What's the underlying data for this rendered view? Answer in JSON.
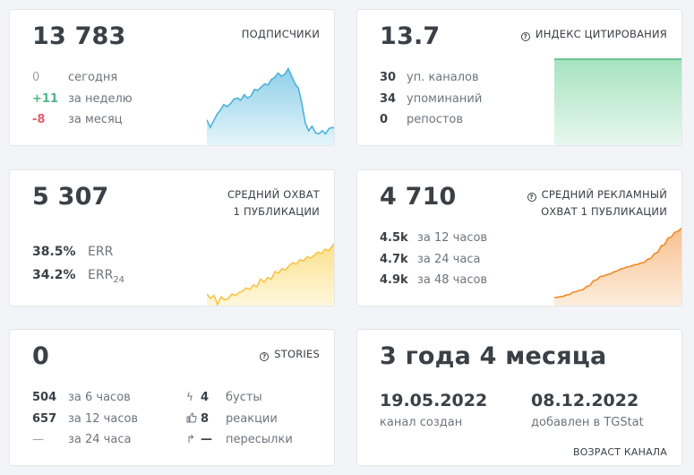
{
  "subscribers": {
    "value": "13 783",
    "label": "ПОДПИСЧИКИ",
    "rows": [
      {
        "value": "0",
        "text": "сегодня",
        "tone": "muted"
      },
      {
        "value": "+11",
        "text": "за неделю",
        "tone": "green"
      },
      {
        "value": "-8",
        "text": "за месяц",
        "tone": "red"
      }
    ],
    "sparkline": {
      "type": "area",
      "color": "#4ab3d8",
      "fill_top": "#8fd0e8",
      "fill_bottom": "#e6f5fb",
      "values": [
        25,
        18,
        24,
        30,
        34,
        39,
        37,
        40,
        44,
        45,
        43,
        48,
        45,
        47,
        53,
        52,
        55,
        58,
        57,
        62,
        64,
        68,
        65,
        67,
        72,
        65,
        58,
        54,
        40,
        22,
        15,
        19,
        13,
        12,
        15,
        12,
        17,
        18,
        17
      ]
    }
  },
  "citation": {
    "value": "13.7",
    "label": "ИНДЕКС ЦИТИРОВАНИЯ",
    "icon": "question-circle-icon",
    "rows": [
      {
        "value": "30",
        "text": "уп. каналов"
      },
      {
        "value": "34",
        "text": "упоминаний"
      },
      {
        "value": "0",
        "text": "репостов"
      }
    ],
    "sparkline": {
      "type": "area",
      "color": "#4cb782",
      "fill_top": "#a6e3bf",
      "fill_bottom": "#e9f8ef",
      "values": [
        100,
        100,
        100,
        100,
        100,
        100
      ]
    }
  },
  "reach": {
    "value": "5 307",
    "label_line1": "СРЕДНИЙ ОХВАТ",
    "label_line2": "1 ПУБЛИКАЦИИ",
    "err": {
      "value": "38.5%",
      "text": "ERR"
    },
    "err24": {
      "value": "34.2%",
      "text": "ERR",
      "sub": "24"
    },
    "sparkline": {
      "type": "area",
      "color": "#f6c445",
      "fill_top": "#fbe08a",
      "fill_bottom": "#fff8df",
      "values": [
        18,
        12,
        16,
        4,
        14,
        10,
        12,
        18,
        16,
        20,
        22,
        26,
        24,
        30,
        28,
        38,
        34,
        40,
        38,
        48,
        46,
        52,
        50,
        56,
        60,
        58,
        64,
        62,
        68,
        66,
        70,
        74,
        72,
        78,
        76,
        82,
        88
      ]
    }
  },
  "ad_reach": {
    "value": "4 710",
    "label_line1": "СРЕДНИЙ РЕКЛАМНЫЙ",
    "label_line2": "ОХВАТ 1 ПУБЛИКАЦИИ",
    "icon": "question-circle-icon",
    "rows": [
      {
        "value": "4.5k",
        "text": "за 12 часов"
      },
      {
        "value": "4.7k",
        "text": "за 24 часа"
      },
      {
        "value": "4.9k",
        "text": "за 48 часов"
      }
    ],
    "sparkline": {
      "type": "area",
      "color": "#f08a24",
      "fill_top": "#f8c190",
      "fill_bottom": "#fdeede",
      "values": [
        10,
        11,
        13,
        16,
        18,
        22,
        28,
        32,
        34,
        37,
        40,
        42,
        44,
        46,
        50,
        56,
        64,
        72,
        78,
        82
      ]
    }
  },
  "stories": {
    "value": "0",
    "label": "STORIES",
    "icon": "question-circle-icon",
    "left_rows": [
      {
        "value": "504",
        "text": "за 6 часов"
      },
      {
        "value": "657",
        "text": "за 12 часов"
      },
      {
        "value": "—",
        "text": "за 24 часа"
      }
    ],
    "right_rows": [
      {
        "icon": "lightning-icon",
        "glyph": "ϟ",
        "value": "4",
        "text": "бусты"
      },
      {
        "icon": "thumbs-up-icon",
        "glyph": "👍",
        "value": "8",
        "text": "реакции"
      },
      {
        "icon": "forward-arrow-icon",
        "glyph": "↱",
        "value": "—",
        "text": "пересылки"
      }
    ]
  },
  "age": {
    "value": "3 года 4 месяца",
    "created": {
      "date": "19.05.2022",
      "text": "канал создан"
    },
    "added": {
      "date": "08.12.2022",
      "text": "добавлен в TGStat"
    },
    "label": "ВОЗРАСТ КАНАЛА"
  }
}
